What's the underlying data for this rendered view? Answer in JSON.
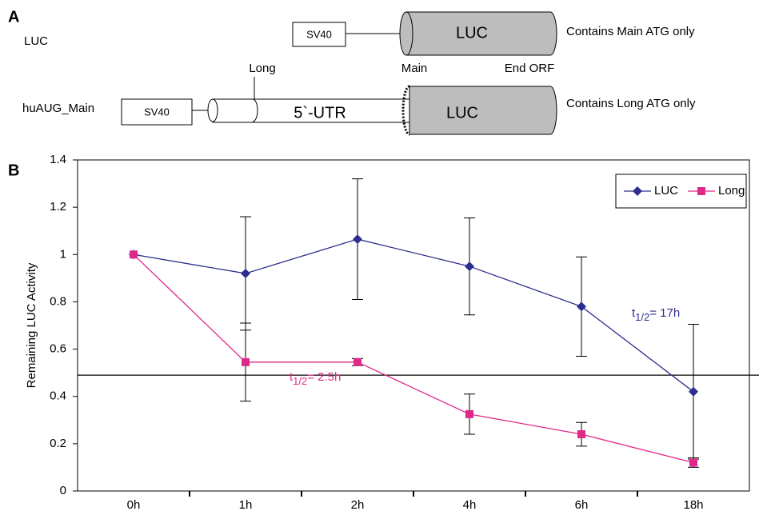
{
  "panel_a": {
    "label": "A",
    "row1": {
      "name": "LUC",
      "promoter": "SV40",
      "gene": "LUC",
      "note": "Contains Main ATG only"
    },
    "row2": {
      "name": "huAUG_Main",
      "promoter": "SV40",
      "utr": "5`-UTR",
      "gene": "LUC",
      "note": "Contains Long ATG only",
      "site_long": "Long",
      "site_main": "Main",
      "site_end": "End ORF"
    }
  },
  "chart_data": {
    "type": "line",
    "panel_label": "B",
    "y_label": "Remaining LUC Activity",
    "categories": [
      "0h",
      "1h",
      "2h",
      "4h",
      "6h",
      "18h"
    ],
    "series": [
      {
        "name": "LUC",
        "color": "#2e2e8f",
        "marker": "diamond",
        "values": [
          1,
          0.92,
          1.065,
          0.95,
          0.78,
          0.42
        ],
        "errors": [
          0,
          0.24,
          0.255,
          0.205,
          0.21,
          0.285
        ]
      },
      {
        "name": "Long",
        "color": "#e0288a",
        "marker": "square",
        "values": [
          1,
          0.545,
          0.545,
          0.325,
          0.24,
          0.12
        ],
        "errors": [
          0,
          0.165,
          0.015,
          0.085,
          0.05,
          0.02
        ]
      }
    ],
    "reference_line": 0.49,
    "annotations": [
      {
        "t": "t",
        "sub": "1/2",
        "rest": "= 17h",
        "color": "#2e2e8f"
      },
      {
        "t": "t",
        "sub": "1/2",
        "rest": "= 2.5h",
        "color": "#e0288a"
      }
    ],
    "ylim": [
      0,
      1.4
    ],
    "yticks": [
      0,
      0.2,
      0.4,
      0.6,
      0.8,
      1,
      1.2,
      1.4
    ],
    "legend": "upper-right"
  }
}
